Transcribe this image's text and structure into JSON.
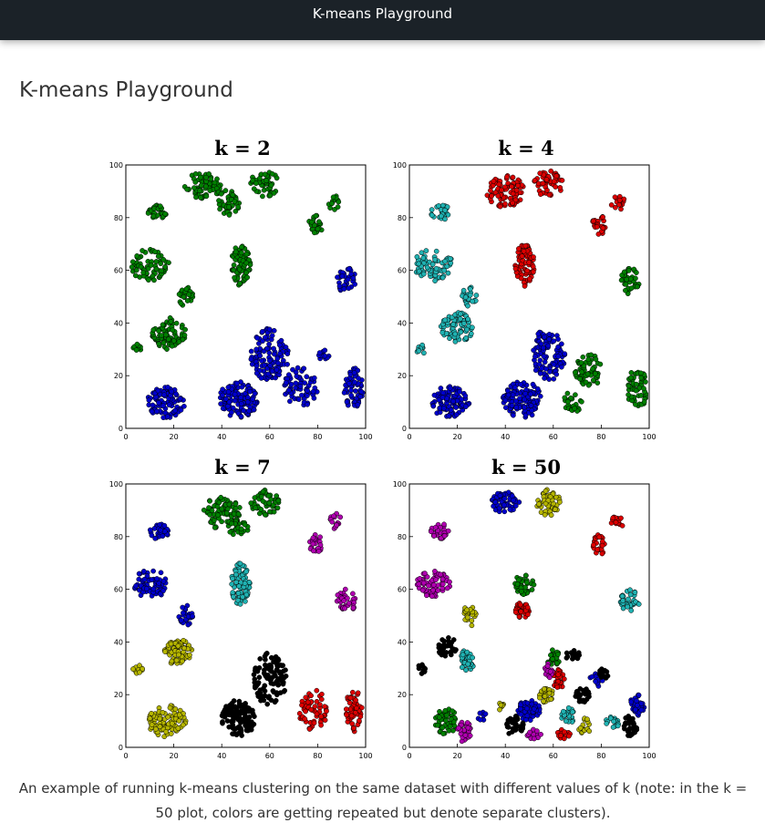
{
  "header": {
    "title": "K-means Playground"
  },
  "page": {
    "title": "K-means Playground"
  },
  "colors": {
    "navbar": "#1b2228",
    "cluster_palette": [
      "#0000cc",
      "#008000",
      "#dd0000",
      "#20b2b2",
      "#b000b0",
      "#b5b500",
      "#000000"
    ]
  },
  "chart_data": [
    {
      "type": "scatter",
      "title": "k = 2",
      "k": 2,
      "xlim": [
        0,
        100
      ],
      "ylim": [
        0,
        100
      ],
      "xticks": [
        "0",
        "20",
        "40",
        "60",
        "80",
        "100"
      ],
      "yticks": [
        "0",
        "20",
        "40",
        "60",
        "80",
        "100"
      ],
      "blobs": [
        {
          "x": 32,
          "y": 92,
          "rx": 8,
          "ry": 5,
          "n": 70,
          "c": 1
        },
        {
          "x": 58,
          "y": 93,
          "rx": 6,
          "ry": 5,
          "n": 50,
          "c": 1
        },
        {
          "x": 43,
          "y": 86,
          "rx": 5,
          "ry": 5,
          "n": 40,
          "c": 1
        },
        {
          "x": 13,
          "y": 82,
          "rx": 4,
          "ry": 3,
          "n": 30,
          "c": 1
        },
        {
          "x": 79,
          "y": 77,
          "rx": 3,
          "ry": 4,
          "n": 25,
          "c": 1
        },
        {
          "x": 87,
          "y": 86,
          "rx": 3,
          "ry": 3,
          "n": 15,
          "c": 1
        },
        {
          "x": 48,
          "y": 62,
          "rx": 4,
          "ry": 8,
          "n": 80,
          "c": 1
        },
        {
          "x": 10,
          "y": 62,
          "rx": 8,
          "ry": 6,
          "n": 70,
          "c": 1
        },
        {
          "x": 25,
          "y": 50,
          "rx": 3,
          "ry": 4,
          "n": 25,
          "c": 1
        },
        {
          "x": 18,
          "y": 36,
          "rx": 7,
          "ry": 6,
          "n": 80,
          "c": 1
        },
        {
          "x": 5,
          "y": 30,
          "rx": 2,
          "ry": 2,
          "n": 10,
          "c": 1
        },
        {
          "x": 92,
          "y": 56,
          "rx": 4,
          "ry": 5,
          "n": 35,
          "c": 0
        },
        {
          "x": 17,
          "y": 10,
          "rx": 8,
          "ry": 6,
          "n": 100,
          "c": 0
        },
        {
          "x": 60,
          "y": 28,
          "rx": 8,
          "ry": 10,
          "n": 110,
          "c": 0
        },
        {
          "x": 47,
          "y": 11,
          "rx": 8,
          "ry": 7,
          "n": 120,
          "c": 0
        },
        {
          "x": 73,
          "y": 16,
          "rx": 7,
          "ry": 8,
          "n": 70,
          "c": 0
        },
        {
          "x": 95,
          "y": 15,
          "rx": 4,
          "ry": 8,
          "n": 60,
          "c": 0
        },
        {
          "x": 83,
          "y": 28,
          "rx": 3,
          "ry": 2,
          "n": 12,
          "c": 0
        }
      ]
    },
    {
      "type": "scatter",
      "title": "k = 4",
      "k": 4,
      "xlim": [
        0,
        100
      ],
      "ylim": [
        0,
        100
      ],
      "xticks": [
        "0",
        "20",
        "40",
        "60",
        "80",
        "100"
      ],
      "yticks": [
        "0",
        "20",
        "40",
        "60",
        "80",
        "100"
      ],
      "blobs": [
        {
          "x": 40,
          "y": 90,
          "rx": 8,
          "ry": 6,
          "n": 90,
          "c": 2
        },
        {
          "x": 58,
          "y": 93,
          "rx": 6,
          "ry": 5,
          "n": 50,
          "c": 2
        },
        {
          "x": 79,
          "y": 77,
          "rx": 3,
          "ry": 4,
          "n": 25,
          "c": 2
        },
        {
          "x": 87,
          "y": 86,
          "rx": 3,
          "ry": 3,
          "n": 15,
          "c": 2
        },
        {
          "x": 48,
          "y": 62,
          "rx": 4,
          "ry": 8,
          "n": 80,
          "c": 2
        },
        {
          "x": 13,
          "y": 82,
          "rx": 4,
          "ry": 3,
          "n": 30,
          "c": 3
        },
        {
          "x": 10,
          "y": 62,
          "rx": 8,
          "ry": 6,
          "n": 70,
          "c": 3
        },
        {
          "x": 25,
          "y": 50,
          "rx": 3,
          "ry": 4,
          "n": 25,
          "c": 3
        },
        {
          "x": 20,
          "y": 38,
          "rx": 7,
          "ry": 6,
          "n": 80,
          "c": 3
        },
        {
          "x": 5,
          "y": 30,
          "rx": 2,
          "ry": 2,
          "n": 10,
          "c": 3
        },
        {
          "x": 92,
          "y": 56,
          "rx": 4,
          "ry": 5,
          "n": 35,
          "c": 1
        },
        {
          "x": 75,
          "y": 22,
          "rx": 6,
          "ry": 6,
          "n": 60,
          "c": 1
        },
        {
          "x": 95,
          "y": 15,
          "rx": 4,
          "ry": 8,
          "n": 60,
          "c": 1
        },
        {
          "x": 68,
          "y": 10,
          "rx": 4,
          "ry": 4,
          "n": 25,
          "c": 1
        },
        {
          "x": 17,
          "y": 10,
          "rx": 8,
          "ry": 6,
          "n": 100,
          "c": 0
        },
        {
          "x": 58,
          "y": 28,
          "rx": 7,
          "ry": 10,
          "n": 100,
          "c": 0
        },
        {
          "x": 47,
          "y": 11,
          "rx": 8,
          "ry": 7,
          "n": 120,
          "c": 0
        }
      ]
    },
    {
      "type": "scatter",
      "title": "k = 7",
      "k": 7,
      "xlim": [
        0,
        100
      ],
      "ylim": [
        0,
        100
      ],
      "xticks": [
        "0",
        "20",
        "40",
        "60",
        "80",
        "100"
      ],
      "yticks": [
        "0",
        "20",
        "40",
        "60",
        "80",
        "100"
      ],
      "blobs": [
        {
          "x": 40,
          "y": 89,
          "rx": 8,
          "ry": 6,
          "n": 80,
          "c": 1
        },
        {
          "x": 58,
          "y": 93,
          "rx": 6,
          "ry": 5,
          "n": 50,
          "c": 1
        },
        {
          "x": 47,
          "y": 83,
          "rx": 4,
          "ry": 3,
          "n": 25,
          "c": 1
        },
        {
          "x": 14,
          "y": 82,
          "rx": 4,
          "ry": 3,
          "n": 30,
          "c": 0
        },
        {
          "x": 10,
          "y": 62,
          "rx": 7,
          "ry": 6,
          "n": 70,
          "c": 0
        },
        {
          "x": 25,
          "y": 50,
          "rx": 3,
          "ry": 4,
          "n": 25,
          "c": 0
        },
        {
          "x": 48,
          "y": 62,
          "rx": 4,
          "ry": 8,
          "n": 80,
          "c": 3
        },
        {
          "x": 79,
          "y": 77,
          "rx": 3,
          "ry": 4,
          "n": 25,
          "c": 4
        },
        {
          "x": 87,
          "y": 86,
          "rx": 3,
          "ry": 3,
          "n": 15,
          "c": 4
        },
        {
          "x": 92,
          "y": 56,
          "rx": 4,
          "ry": 5,
          "n": 35,
          "c": 4
        },
        {
          "x": 22,
          "y": 36,
          "rx": 6,
          "ry": 5,
          "n": 80,
          "c": 5
        },
        {
          "x": 5,
          "y": 30,
          "rx": 2,
          "ry": 2,
          "n": 10,
          "c": 5
        },
        {
          "x": 17,
          "y": 10,
          "rx": 8,
          "ry": 6,
          "n": 100,
          "c": 5
        },
        {
          "x": 60,
          "y": 26,
          "rx": 7,
          "ry": 10,
          "n": 110,
          "c": 6
        },
        {
          "x": 47,
          "y": 11,
          "rx": 7,
          "ry": 7,
          "n": 110,
          "c": 6
        },
        {
          "x": 78,
          "y": 14,
          "rx": 6,
          "ry": 8,
          "n": 60,
          "c": 2
        },
        {
          "x": 95,
          "y": 14,
          "rx": 4,
          "ry": 8,
          "n": 60,
          "c": 2
        }
      ]
    },
    {
      "type": "scatter",
      "title": "k = 50",
      "k": 50,
      "xlim": [
        0,
        100
      ],
      "ylim": [
        0,
        100
      ],
      "xticks": [
        "0",
        "20",
        "40",
        "60",
        "80",
        "100"
      ],
      "yticks": [
        "0",
        "20",
        "40",
        "60",
        "80",
        "100"
      ],
      "blobs": [
        {
          "x": 40,
          "y": 93,
          "rx": 6,
          "ry": 4,
          "n": 55,
          "c": 0
        },
        {
          "x": 58,
          "y": 93,
          "rx": 5,
          "ry": 5,
          "n": 50,
          "c": 5
        },
        {
          "x": 48,
          "y": 62,
          "rx": 4,
          "ry": 4,
          "n": 40,
          "c": 1
        },
        {
          "x": 47,
          "y": 52,
          "rx": 3,
          "ry": 3,
          "n": 35,
          "c": 2
        },
        {
          "x": 79,
          "y": 77,
          "rx": 3,
          "ry": 4,
          "n": 25,
          "c": 2
        },
        {
          "x": 87,
          "y": 86,
          "rx": 3,
          "ry": 3,
          "n": 15,
          "c": 2
        },
        {
          "x": 13,
          "y": 82,
          "rx": 4,
          "ry": 3,
          "n": 30,
          "c": 4
        },
        {
          "x": 10,
          "y": 62,
          "rx": 7,
          "ry": 5,
          "n": 65,
          "c": 4
        },
        {
          "x": 25,
          "y": 50,
          "rx": 3,
          "ry": 4,
          "n": 25,
          "c": 5
        },
        {
          "x": 16,
          "y": 38,
          "rx": 4,
          "ry": 4,
          "n": 35,
          "c": 6
        },
        {
          "x": 24,
          "y": 33,
          "rx": 3,
          "ry": 4,
          "n": 35,
          "c": 3
        },
        {
          "x": 5,
          "y": 30,
          "rx": 2,
          "ry": 2,
          "n": 10,
          "c": 6
        },
        {
          "x": 92,
          "y": 56,
          "rx": 4,
          "ry": 5,
          "n": 35,
          "c": 3
        },
        {
          "x": 15,
          "y": 10,
          "rx": 5,
          "ry": 5,
          "n": 50,
          "c": 1
        },
        {
          "x": 23,
          "y": 6,
          "rx": 3,
          "ry": 4,
          "n": 30,
          "c": 4
        },
        {
          "x": 50,
          "y": 14,
          "rx": 5,
          "ry": 4,
          "n": 55,
          "c": 0
        },
        {
          "x": 44,
          "y": 8,
          "rx": 4,
          "ry": 4,
          "n": 35,
          "c": 6
        },
        {
          "x": 57,
          "y": 20,
          "rx": 3,
          "ry": 3,
          "n": 30,
          "c": 5
        },
        {
          "x": 62,
          "y": 26,
          "rx": 3,
          "ry": 4,
          "n": 30,
          "c": 2
        },
        {
          "x": 60,
          "y": 34,
          "rx": 3,
          "ry": 3,
          "n": 25,
          "c": 1
        },
        {
          "x": 68,
          "y": 35,
          "rx": 3,
          "ry": 2,
          "n": 15,
          "c": 6
        },
        {
          "x": 58,
          "y": 29,
          "rx": 2,
          "ry": 3,
          "n": 15,
          "c": 4
        },
        {
          "x": 72,
          "y": 20,
          "rx": 3,
          "ry": 3,
          "n": 20,
          "c": 6
        },
        {
          "x": 66,
          "y": 12,
          "rx": 3,
          "ry": 3,
          "n": 20,
          "c": 3
        },
        {
          "x": 78,
          "y": 26,
          "rx": 3,
          "ry": 3,
          "n": 15,
          "c": 0
        },
        {
          "x": 81,
          "y": 28,
          "rx": 2,
          "ry": 2,
          "n": 10,
          "c": 6
        },
        {
          "x": 73,
          "y": 8,
          "rx": 3,
          "ry": 3,
          "n": 15,
          "c": 5
        },
        {
          "x": 95,
          "y": 16,
          "rx": 3,
          "ry": 4,
          "n": 35,
          "c": 0
        },
        {
          "x": 92,
          "y": 8,
          "rx": 3,
          "ry": 4,
          "n": 30,
          "c": 6
        },
        {
          "x": 85,
          "y": 10,
          "rx": 3,
          "ry": 3,
          "n": 15,
          "c": 3
        },
        {
          "x": 64,
          "y": 5,
          "rx": 3,
          "ry": 2,
          "n": 15,
          "c": 2
        },
        {
          "x": 52,
          "y": 5,
          "rx": 3,
          "ry": 2,
          "n": 15,
          "c": 4
        },
        {
          "x": 38,
          "y": 16,
          "rx": 2,
          "ry": 2,
          "n": 8,
          "c": 5
        },
        {
          "x": 30,
          "y": 12,
          "rx": 2,
          "ry": 2,
          "n": 8,
          "c": 0
        }
      ]
    }
  ],
  "caption": "An example of running k-means clustering on the same dataset with different values of k (note: in the k = 50 plot, colors are getting repeated but denote separate clusters)."
}
